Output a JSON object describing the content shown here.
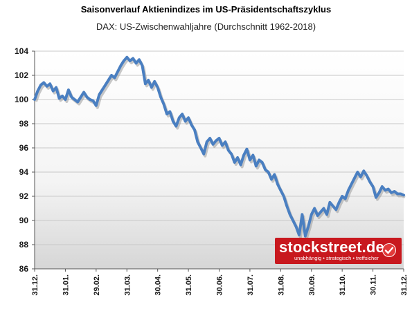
{
  "header": {
    "title": "Saisonverlauf Aktienindizes im US-Präsidentschaftszyklus",
    "subtitle": "DAX: US-Zwischenwahljahre (Durchschnitt 1962-2018)"
  },
  "logo": {
    "name": "stockstreet.de",
    "tagline": "unabhängig • strategisch • treffsicher"
  },
  "colors": {
    "line": "#4a7fc1",
    "shadow": "#9a9a9a",
    "grid": "#c8c8c8",
    "brand": "#c8181e"
  },
  "chart_data": {
    "type": "line",
    "title": "Saisonverlauf Aktienindizes im US-Präsidentschaftszyklus",
    "subtitle": "DAX: US-Zwischenwahljahre (Durchschnitt 1962-2018)",
    "ylim": [
      86,
      104
    ],
    "yticks": [
      "86",
      "88",
      "90",
      "92",
      "94",
      "96",
      "98",
      "100",
      "102",
      "104"
    ],
    "xticks": [
      "31.12.",
      "31.01.",
      "29.02.",
      "31.03.",
      "30.04.",
      "31.05.",
      "30.06.",
      "31.07.",
      "31.08.",
      "30.09.",
      "31.10.",
      "30.11.",
      "31.12."
    ],
    "grid": true,
    "series": [
      {
        "values": [
          [
            0,
            100.0
          ],
          [
            0.1,
            100.7
          ],
          [
            0.2,
            101.2
          ],
          [
            0.3,
            101.4
          ],
          [
            0.4,
            101.1
          ],
          [
            0.5,
            101.3
          ],
          [
            0.6,
            100.7
          ],
          [
            0.7,
            101.0
          ],
          [
            0.8,
            100.1
          ],
          [
            0.9,
            100.3
          ],
          [
            1.0,
            100.0
          ],
          [
            1.1,
            100.8
          ],
          [
            1.2,
            100.2
          ],
          [
            1.3,
            100.0
          ],
          [
            1.4,
            99.8
          ],
          [
            1.5,
            100.2
          ],
          [
            1.6,
            100.6
          ],
          [
            1.7,
            100.2
          ],
          [
            1.8,
            100.0
          ],
          [
            1.9,
            99.9
          ],
          [
            2.0,
            99.5
          ],
          [
            2.1,
            100.4
          ],
          [
            2.2,
            100.8
          ],
          [
            2.3,
            101.2
          ],
          [
            2.4,
            101.6
          ],
          [
            2.5,
            102.0
          ],
          [
            2.6,
            101.8
          ],
          [
            2.7,
            102.3
          ],
          [
            2.8,
            102.8
          ],
          [
            2.9,
            103.2
          ],
          [
            3.0,
            103.5
          ],
          [
            3.1,
            103.2
          ],
          [
            3.2,
            103.4
          ],
          [
            3.3,
            103.0
          ],
          [
            3.4,
            103.3
          ],
          [
            3.5,
            102.8
          ],
          [
            3.6,
            101.3
          ],
          [
            3.7,
            101.6
          ],
          [
            3.8,
            101.0
          ],
          [
            3.9,
            101.5
          ],
          [
            4.0,
            101.0
          ],
          [
            4.1,
            100.2
          ],
          [
            4.2,
            99.6
          ],
          [
            4.3,
            98.8
          ],
          [
            4.4,
            99.0
          ],
          [
            4.5,
            98.2
          ],
          [
            4.6,
            97.8
          ],
          [
            4.7,
            98.5
          ],
          [
            4.8,
            98.8
          ],
          [
            4.9,
            98.2
          ],
          [
            5.0,
            98.5
          ],
          [
            5.1,
            97.9
          ],
          [
            5.2,
            97.5
          ],
          [
            5.3,
            96.5
          ],
          [
            5.4,
            96.0
          ],
          [
            5.5,
            95.5
          ],
          [
            5.6,
            96.5
          ],
          [
            5.7,
            96.8
          ],
          [
            5.8,
            96.3
          ],
          [
            5.9,
            96.6
          ],
          [
            6.0,
            96.8
          ],
          [
            6.1,
            96.2
          ],
          [
            6.2,
            96.5
          ],
          [
            6.3,
            95.8
          ],
          [
            6.4,
            95.5
          ],
          [
            6.5,
            94.8
          ],
          [
            6.6,
            95.2
          ],
          [
            6.7,
            94.6
          ],
          [
            6.8,
            95.4
          ],
          [
            6.9,
            95.9
          ],
          [
            7.0,
            95.0
          ],
          [
            7.1,
            95.4
          ],
          [
            7.2,
            94.5
          ],
          [
            7.3,
            95.0
          ],
          [
            7.4,
            94.8
          ],
          [
            7.5,
            94.2
          ],
          [
            7.6,
            94.0
          ],
          [
            7.7,
            93.4
          ],
          [
            7.8,
            93.8
          ],
          [
            7.9,
            93.0
          ],
          [
            8.0,
            92.5
          ],
          [
            8.1,
            92.0
          ],
          [
            8.2,
            91.2
          ],
          [
            8.3,
            90.5
          ],
          [
            8.4,
            90.0
          ],
          [
            8.5,
            89.5
          ],
          [
            8.6,
            88.8
          ],
          [
            8.7,
            90.5
          ],
          [
            8.8,
            88.7
          ],
          [
            8.9,
            89.5
          ],
          [
            9.0,
            90.5
          ],
          [
            9.1,
            91.0
          ],
          [
            9.2,
            90.4
          ],
          [
            9.3,
            90.7
          ],
          [
            9.4,
            91.0
          ],
          [
            9.5,
            90.5
          ],
          [
            9.6,
            91.5
          ],
          [
            9.7,
            91.2
          ],
          [
            9.8,
            90.9
          ],
          [
            9.9,
            91.5
          ],
          [
            10.0,
            92.0
          ],
          [
            10.1,
            91.8
          ],
          [
            10.2,
            92.5
          ],
          [
            10.3,
            93.0
          ],
          [
            10.4,
            93.5
          ],
          [
            10.5,
            94.0
          ],
          [
            10.6,
            93.6
          ],
          [
            10.7,
            94.1
          ],
          [
            10.8,
            93.7
          ],
          [
            10.9,
            93.2
          ],
          [
            11.0,
            92.8
          ],
          [
            11.1,
            91.9
          ],
          [
            11.2,
            92.3
          ],
          [
            11.3,
            92.8
          ],
          [
            11.4,
            92.5
          ],
          [
            11.5,
            92.6
          ],
          [
            11.6,
            92.3
          ],
          [
            11.7,
            92.4
          ],
          [
            11.8,
            92.2
          ],
          [
            11.9,
            92.2
          ],
          [
            12.0,
            92.1
          ]
        ]
      }
    ]
  }
}
